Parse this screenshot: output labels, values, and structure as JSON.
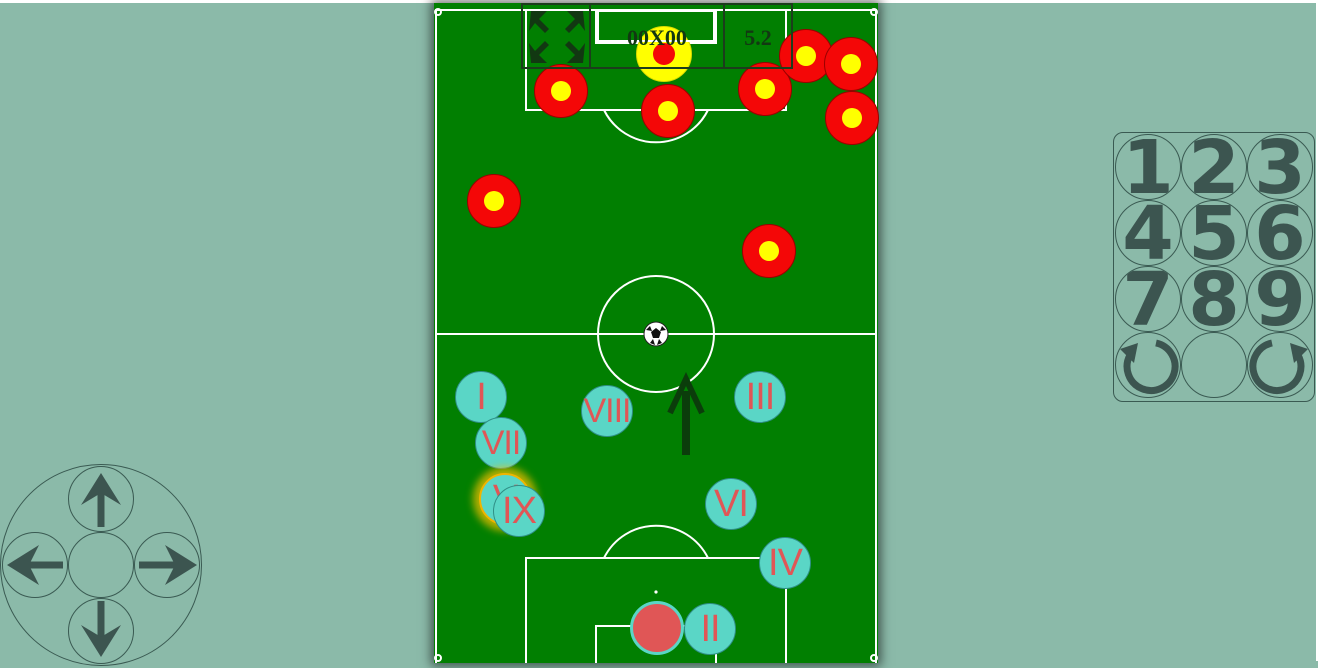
{
  "scoreboard": {
    "score": "00X00",
    "time": "5.2"
  },
  "opponents": [
    {
      "id": "opp-1"
    },
    {
      "id": "opp-2"
    },
    {
      "id": "opp-3"
    },
    {
      "id": "opp-4"
    },
    {
      "id": "opp-5"
    },
    {
      "id": "opp-6"
    },
    {
      "id": "opp-7"
    },
    {
      "id": "opp-8"
    },
    {
      "id": "opp-9"
    },
    {
      "id": "opp-10"
    }
  ],
  "teammates": [
    "I",
    "II",
    "III",
    "IV",
    "V",
    "VI",
    "VII",
    "VIII",
    "IX"
  ],
  "keypad": {
    "keys": [
      "1",
      "2",
      "3",
      "4",
      "5",
      "6",
      "7",
      "8",
      "9"
    ],
    "rotate_left": "rotate-ccw-icon",
    "rotate_right": "rotate-cw-icon"
  },
  "dpad": {
    "up": "arrow-up-icon",
    "down": "arrow-down-icon",
    "left": "arrow-left-icon",
    "right": "arrow-right-icon"
  },
  "colors": {
    "background": "#8bbaa9",
    "pitch": "#017f01",
    "opponent": "#f40707",
    "opponent_dot": "#ffff00",
    "teammate": "#5ad6c6",
    "teammate_text": "#e05656",
    "goalkeeper": "#e05656",
    "control": "#3c5550"
  }
}
